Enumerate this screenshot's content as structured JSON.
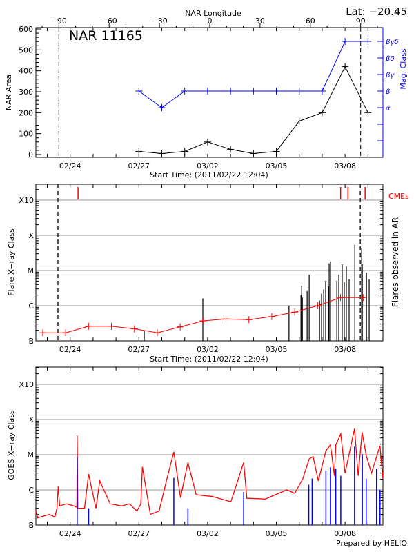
{
  "header": {
    "lat_label": "Lat: −20.45",
    "top_axis_title": "NAR Longitude"
  },
  "footer": {
    "credit": "Prepared by HELIO"
  },
  "colors": {
    "area": "#000000",
    "mag_class": "#0000ff",
    "flare_mean": "#ff0000",
    "cme": "#ff0000",
    "goes_long": "#ff0000",
    "goes_short": "#0000ff",
    "grid": "#999999"
  },
  "chart_data": [
    {
      "type": "line",
      "title": "NAR 11165",
      "xlabel": "Start Time: (2011/02/22 12:04)",
      "ylabel": "NAR Area",
      "y2label": "Mag. Class",
      "x2label": "NAR Longitude",
      "xlim": [
        "2011/02/22 12:04",
        "2011/03/09 15:40"
      ],
      "ylim": [
        0,
        600
      ],
      "x_tick_labels": [
        "02/24",
        "02/27",
        "03/02",
        "03/05",
        "03/08"
      ],
      "y_tick_labels": [
        "0",
        "100",
        "200",
        "300",
        "400",
        "500",
        "600"
      ],
      "x2_ticks": [
        -90,
        -60,
        -30,
        0,
        30,
        60,
        90
      ],
      "y2_tick_labels": [
        "α",
        "β",
        "βγ",
        "βδ",
        "βγδ"
      ],
      "dashed_lines_longitude": [
        -90,
        90
      ],
      "series": [
        {
          "name": "NAR Area",
          "x": [
            "2011/02/27 00:00",
            "2011/02/28 00:00",
            "2011/03/01 00:00",
            "2011/03/02 00:00",
            "2011/03/03 00:00",
            "2011/03/04 00:00",
            "2011/03/05 00:00",
            "2011/03/06 00:00",
            "2011/03/07 00:00",
            "2011/03/08 00:00",
            "2011/03/09 00:00"
          ],
          "values": [
            15,
            5,
            15,
            60,
            25,
            5,
            15,
            160,
            200,
            420,
            200
          ]
        },
        {
          "name": "Mag. Class",
          "x": [
            "2011/02/27 00:00",
            "2011/02/28 00:00",
            "2011/03/01 00:00",
            "2011/03/02 00:00",
            "2011/03/03 00:00",
            "2011/03/04 00:00",
            "2011/03/05 00:00",
            "2011/03/06 00:00",
            "2011/03/07 00:00",
            "2011/03/08 00:00",
            "2011/03/09 00:00"
          ],
          "values": [
            "β",
            "α",
            "β",
            "β",
            "β",
            "β",
            "β",
            "β",
            "β",
            "βγδ",
            "βγδ"
          ]
        }
      ]
    },
    {
      "type": "bar",
      "xlabel": "Start Time: (2011/02/22 12:04)",
      "ylabel": "Flare X−ray Class",
      "y2label": "Flares observed in AR",
      "cme_label": "CMEs",
      "xlim": [
        "2011/02/22 12:04",
        "2011/03/09 15:40"
      ],
      "ylim": [
        1e-07,
        0.003
      ],
      "yscale": "log",
      "grid": true,
      "x_tick_labels": [
        "02/24",
        "02/27",
        "03/02",
        "03/05",
        "03/08"
      ],
      "y_tick_labels": [
        "B",
        "C",
        "M",
        "X",
        "X10"
      ],
      "dashed_lines": [
        "2011/02/23 11:10",
        "2011/03/08 15:55"
      ],
      "cmes": [
        "2011/02/24 08:15",
        "2011/03/07 19:20",
        "2011/03/08 03:00",
        "2011/03/08 21:00"
      ],
      "flares": [
        [
          "2011/02/27 05:35",
          1.9e-07
        ],
        [
          "2011/03/01 19:00",
          1.6e-06
        ],
        [
          "2011/03/05 13:15",
          1e-06
        ],
        [
          "2011/03/06 01:45",
          2e-06
        ],
        [
          "2011/03/06 02:30",
          3.7e-06
        ],
        [
          "2011/03/06 03:15",
          1.7e-06
        ],
        [
          "2011/03/06 08:15",
          2.6e-06
        ],
        [
          "2011/03/06 10:25",
          7.6e-06
        ],
        [
          "2011/03/06 21:15",
          1.4e-06
        ],
        [
          "2011/03/06 23:20",
          2.2e-06
        ],
        [
          "2011/03/07 01:35",
          2.9e-06
        ],
        [
          "2011/03/07 03:40",
          5.1e-06
        ],
        [
          "2011/03/07 06:35",
          3.5e-06
        ],
        [
          "2011/03/07 07:20",
          1.6e-05
        ],
        [
          "2011/03/07 08:45",
          1.8e-05
        ],
        [
          "2011/03/07 15:20",
          5.1e-06
        ],
        [
          "2011/03/07 17:25",
          7.6e-06
        ],
        [
          "2011/03/07 21:00",
          1.5e-05
        ],
        [
          "2011/03/07 23:10",
          4.7e-06
        ],
        [
          "2011/03/08 01:20",
          1.3e-05
        ],
        [
          "2011/03/08 04:15",
          5.6e-06
        ],
        [
          "2011/03/08 10:10",
          5.4e-05
        ],
        [
          "2011/03/08 17:20",
          4.3e-05
        ],
        [
          "2011/03/08 18:05",
          1.5e-05
        ],
        [
          "2011/03/08 22:25",
          8.7e-06
        ],
        [
          "2011/03/09 01:15",
          5.6e-06
        ]
      ],
      "mean_series": {
        "x": [
          "2011/02/22 19:15",
          "2011/02/23 19:15",
          "2011/02/24 19:15",
          "2011/02/25 19:15",
          "2011/02/26 19:15",
          "2011/02/27 19:15",
          "2011/02/28 19:15",
          "2011/03/01 19:15",
          "2011/03/02 19:15",
          "2011/03/03 19:15",
          "2011/03/04 19:15",
          "2011/03/05 19:15",
          "2011/03/06 19:15",
          "2011/03/07 19:15",
          "2011/03/08 19:15"
        ],
        "values": [
          1.7e-07,
          1.7e-07,
          2.6e-07,
          2.6e-07,
          2.2e-07,
          1.7e-07,
          2.5e-07,
          3.7e-07,
          4.2e-07,
          4e-07,
          4.9e-07,
          6.6e-07,
          1e-06,
          1.7e-06,
          1.7e-06
        ]
      }
    },
    {
      "type": "line",
      "ylabel": "GOES X−ray Class",
      "xlim": [
        "2011/02/22 12:04",
        "2011/03/09 15:40"
      ],
      "ylim": [
        1e-07,
        0.003
      ],
      "yscale": "log",
      "grid": true,
      "x_tick_labels": [
        "02/24",
        "02/27",
        "03/02",
        "03/05",
        "03/08"
      ],
      "y_tick_labels": [
        "B",
        "C",
        "M",
        "X",
        "X10"
      ],
      "series": [
        {
          "x": [
            "2011/02/22 12:04",
            "2011/02/22 14:00",
            "2011/02/22 20:00",
            "2011/02/23 02:00",
            "2011/02/23 08:00",
            "2011/02/23 10:10",
            "2011/02/23 11:30",
            "2011/02/23 13:00",
            "2011/02/23 20:00",
            "2011/02/24 04:00",
            "2011/02/24 07:00",
            "2011/02/24 07:20",
            "2011/02/24 08:00",
            "2011/02/24 15:00",
            "2011/02/24 19:20",
            "2011/02/25 03:00",
            "2011/02/25 07:00",
            "2011/02/25 18:00",
            "2011/02/26 06:00",
            "2011/02/26 14:00",
            "2011/02/26 22:00",
            "2011/02/27 02:00",
            "2011/02/27 03:40",
            "2011/02/27 12:00",
            "2011/02/27 21:10",
            "2011/02/28 05:35",
            "2011/02/28 12:35",
            "2011/02/28 19:35",
            "2011/03/01 03:20",
            "2011/03/01 12:00",
            "2011/03/02 04:50",
            "2011/03/03 00:20",
            "2011/03/03 13:45",
            "2011/03/03 17:05",
            "2011/03/04 12:35",
            "2011/03/05 10:50",
            "2011/03/05 19:15",
            "2011/03/06 03:30",
            "2011/03/06 10:25",
            "2011/03/06 14:30",
            "2011/03/06 20:00",
            "2011/03/07 03:55",
            "2011/03/07 08:40",
            "2011/03/07 12:50",
            "2011/03/07 14:15",
            "2011/03/07 19:30",
            "2011/03/08 00:00",
            "2011/03/08 09:55",
            "2011/03/08 13:45",
            "2011/03/08 17:50",
            "2011/03/08 22:10",
            "2011/03/09 03:40",
            "2011/03/09 12:35",
            "2011/03/09 15:30"
          ],
          "values": [
            2.5e-07,
            1.6e-07,
            1.8e-07,
            2e-07,
            1.7e-07,
            3e-07,
            1.26e-06,
            3.5e-07,
            4e-07,
            3.5e-07,
            3.2e-07,
            3.5e-05,
            3e-07,
            3e-07,
            2.8e-06,
            3e-07,
            1.8e-06,
            4e-07,
            3.5e-07,
            4e-07,
            2.5e-07,
            4e-07,
            4.5e-06,
            2e-07,
            2.5e-07,
            2.2e-06,
            1.2e-05,
            6e-07,
            6e-06,
            7.3e-07,
            6.5e-07,
            4.6e-07,
            6e-06,
            5.8e-07,
            5.5e-07,
            1e-06,
            8e-07,
            2e-06,
            7.6e-06,
            8.8e-06,
            1.8e-06,
            1.3e-05,
            1.9e-05,
            2.5e-06,
            1.9e-05,
            3.9e-05,
            3e-06,
            5.5e-05,
            2.5e-06,
            4.4e-05,
            9.5e-06,
            3e-06,
            1.8e-05,
            2.2e-06
          ]
        },
        {
          "x": [
            "2011/02/24 07:20",
            "2011/02/24 19:20",
            "2011/02/28 12:35",
            "2011/03/01 03:20",
            "2011/03/03 13:45",
            "2011/03/06 10:00",
            "2011/03/06 13:30",
            "2011/03/07 03:55",
            "2011/03/07 08:40",
            "2011/03/07 14:15",
            "2011/03/07 19:30",
            "2011/03/08 09:55",
            "2011/03/08 18:05",
            "2011/03/08 22:10",
            "2011/03/09 09:00",
            "2011/03/09 12:35"
          ],
          "values": [
            8.4e-06,
            3e-07,
            2.2e-06,
            3e-07,
            8.7e-07,
            1.4e-06,
            2.1e-06,
            3.5e-06,
            4.4e-06,
            4e-06,
            2.5e-06,
            1.7e-05,
            1.05e-05,
            2.1e-06,
            4e-06,
            1e-06
          ]
        }
      ]
    }
  ]
}
